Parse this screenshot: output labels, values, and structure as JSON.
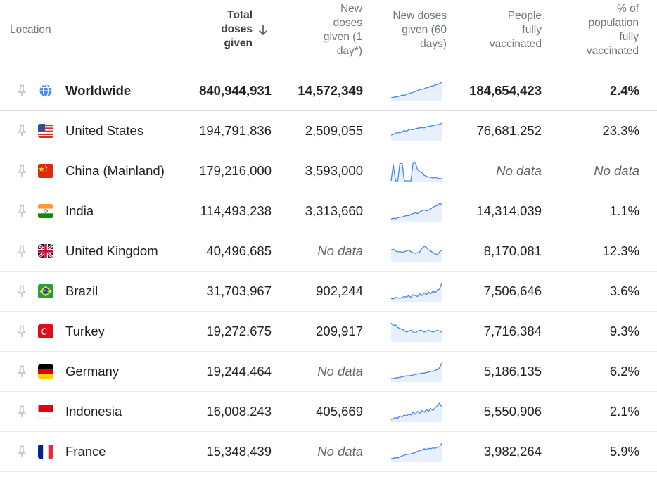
{
  "header": {
    "location": "Location",
    "total_line1": "Total",
    "total_line2": "doses",
    "total_line3": "given",
    "new1_line1": "New",
    "new1_line2": "doses",
    "new1_line3": "given (1",
    "new1_line4": "day*)",
    "new60_line1": "New doses",
    "new60_line2": "given (60",
    "new60_line3": "days)",
    "ppl_line1": "People",
    "ppl_line2": "fully",
    "ppl_line3": "vaccinated",
    "pct_line1": "% of",
    "pct_line2": "population",
    "pct_line3": "fully",
    "pct_line4": "vaccinated"
  },
  "rows": [
    {
      "name": "Worldwide",
      "flag": "globe-icon",
      "total": "840,944,931",
      "new1": "14,572,349",
      "people": "184,654,423",
      "pct": "2.4%",
      "spark": [
        0.15,
        0.18,
        0.2,
        0.22,
        0.25,
        0.3,
        0.28,
        0.35,
        0.38,
        0.42,
        0.45,
        0.5,
        0.55,
        0.6,
        0.62,
        0.65,
        0.7,
        0.72,
        0.78,
        0.8,
        0.85,
        0.88,
        0.92,
        1.0
      ]
    },
    {
      "name": "United States",
      "flag": "us-flag-icon",
      "total": "194,791,836",
      "new1": "2,509,055",
      "people": "76,681,252",
      "pct": "23.3%",
      "spark": [
        0.3,
        0.35,
        0.4,
        0.45,
        0.42,
        0.5,
        0.55,
        0.52,
        0.6,
        0.62,
        0.6,
        0.65,
        0.68,
        0.7,
        0.72,
        0.7,
        0.75,
        0.78,
        0.8,
        0.82,
        0.85,
        0.88,
        0.9,
        0.95
      ]
    },
    {
      "name": "China (Mainland)",
      "flag": "china-flag-icon",
      "total": "179,216,000",
      "new1": "3,593,000",
      "people": "No data",
      "pct": "No data",
      "spark": [
        0.0,
        0.9,
        0.0,
        0.0,
        0.95,
        0.95,
        0.0,
        0.0,
        0.0,
        0.0,
        1.0,
        1.0,
        0.6,
        0.5,
        0.45,
        0.3,
        0.25,
        0.2,
        0.2,
        0.15,
        0.18,
        0.15,
        0.12,
        0.12
      ]
    },
    {
      "name": "India",
      "flag": "india-flag-icon",
      "total": "114,493,238",
      "new1": "3,313,660",
      "people": "14,314,039",
      "pct": "1.1%",
      "spark": [
        0.1,
        0.15,
        0.12,
        0.18,
        0.2,
        0.22,
        0.25,
        0.3,
        0.28,
        0.35,
        0.4,
        0.45,
        0.4,
        0.5,
        0.55,
        0.6,
        0.55,
        0.58,
        0.65,
        0.75,
        0.8,
        0.85,
        0.95,
        0.9
      ]
    },
    {
      "name": "United Kingdom",
      "flag": "uk-flag-icon",
      "total": "40,496,685",
      "new1": "No data",
      "people": "8,170,081",
      "pct": "12.3%",
      "spark": [
        0.6,
        0.65,
        0.55,
        0.5,
        0.52,
        0.48,
        0.5,
        0.55,
        0.6,
        0.5,
        0.45,
        0.42,
        0.45,
        0.5,
        0.7,
        0.8,
        0.75,
        0.6,
        0.55,
        0.45,
        0.4,
        0.35,
        0.5,
        0.6
      ]
    },
    {
      "name": "Brazil",
      "flag": "brazil-flag-icon",
      "total": "31,703,967",
      "new1": "902,244",
      "people": "7,506,646",
      "pct": "3.6%",
      "spark": [
        0.15,
        0.12,
        0.2,
        0.18,
        0.15,
        0.2,
        0.25,
        0.22,
        0.3,
        0.2,
        0.35,
        0.3,
        0.25,
        0.4,
        0.3,
        0.45,
        0.35,
        0.5,
        0.4,
        0.55,
        0.45,
        0.6,
        0.65,
        1.0
      ]
    },
    {
      "name": "Turkey",
      "flag": "turkey-flag-icon",
      "total": "19,272,675",
      "new1": "209,917",
      "people": "7,716,384",
      "pct": "9.3%",
      "spark": [
        1.0,
        0.85,
        0.9,
        0.75,
        0.7,
        0.65,
        0.6,
        0.5,
        0.55,
        0.6,
        0.5,
        0.45,
        0.55,
        0.6,
        0.58,
        0.5,
        0.55,
        0.6,
        0.55,
        0.5,
        0.55,
        0.6,
        0.55,
        0.5
      ]
    },
    {
      "name": "Germany",
      "flag": "germany-flag-icon",
      "total": "19,244,464",
      "new1": "No data",
      "people": "5,186,135",
      "pct": "6.2%",
      "spark": [
        0.15,
        0.15,
        0.18,
        0.2,
        0.22,
        0.25,
        0.28,
        0.3,
        0.3,
        0.32,
        0.35,
        0.38,
        0.4,
        0.42,
        0.45,
        0.45,
        0.48,
        0.5,
        0.55,
        0.55,
        0.6,
        0.65,
        0.75,
        1.0
      ]
    },
    {
      "name": "Indonesia",
      "flag": "indonesia-flag-icon",
      "total": "16,008,243",
      "new1": "405,669",
      "people": "5,550,906",
      "pct": "2.1%",
      "spark": [
        0.1,
        0.15,
        0.2,
        0.18,
        0.3,
        0.25,
        0.35,
        0.3,
        0.4,
        0.35,
        0.5,
        0.4,
        0.55,
        0.45,
        0.6,
        0.5,
        0.65,
        0.55,
        0.7,
        0.6,
        0.75,
        0.85,
        1.0,
        0.8
      ]
    },
    {
      "name": "France",
      "flag": "france-flag-icon",
      "total": "15,348,439",
      "new1": "No data",
      "people": "3,982,264",
      "pct": "5.9%",
      "spark": [
        0.15,
        0.18,
        0.2,
        0.2,
        0.25,
        0.3,
        0.35,
        0.38,
        0.4,
        0.42,
        0.45,
        0.48,
        0.55,
        0.6,
        0.62,
        0.7,
        0.65,
        0.72,
        0.7,
        0.75,
        0.72,
        0.78,
        0.8,
        1.0
      ]
    }
  ],
  "colors": {
    "spark_line": "#4285f4",
    "spark_fill": "#e8f0fe",
    "pin": "#bdc1c6",
    "globe": "#4285f4"
  }
}
